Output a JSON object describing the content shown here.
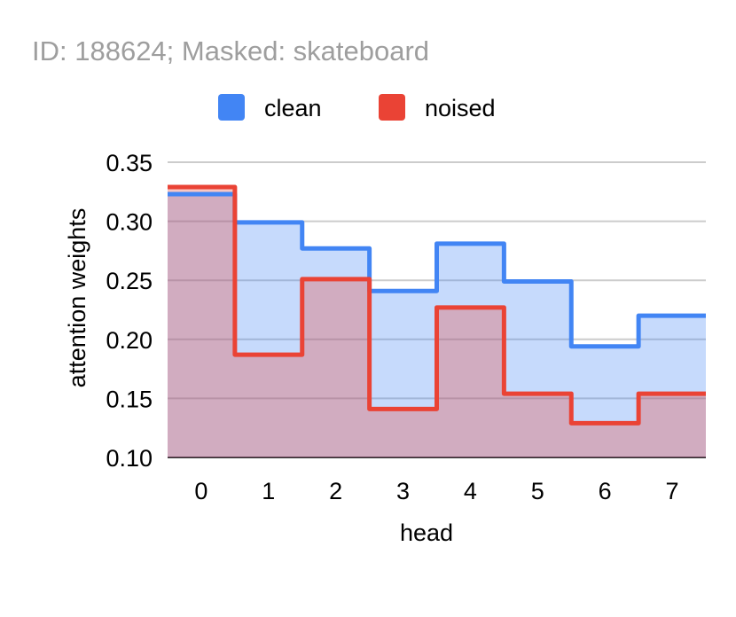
{
  "chart_data": {
    "type": "area",
    "step": true,
    "title": "ID: 188624; Masked: skateboard",
    "xlabel": "head",
    "ylabel": "attention weights",
    "categories": [
      "0",
      "1",
      "2",
      "3",
      "4",
      "5",
      "6",
      "7"
    ],
    "ylim": [
      0.1,
      0.35
    ],
    "yticks": [
      "0.10",
      "0.15",
      "0.20",
      "0.25",
      "0.30",
      "0.35"
    ],
    "grid": true,
    "legend_position": "top",
    "series": [
      {
        "name": "clean",
        "color": "#4285f4",
        "values": [
          0.323,
          0.299,
          0.277,
          0.241,
          0.281,
          0.249,
          0.194,
          0.22
        ]
      },
      {
        "name": "noised",
        "color": "#ea4335",
        "values": [
          0.329,
          0.187,
          0.251,
          0.141,
          0.227,
          0.154,
          0.129,
          0.154
        ]
      }
    ]
  }
}
